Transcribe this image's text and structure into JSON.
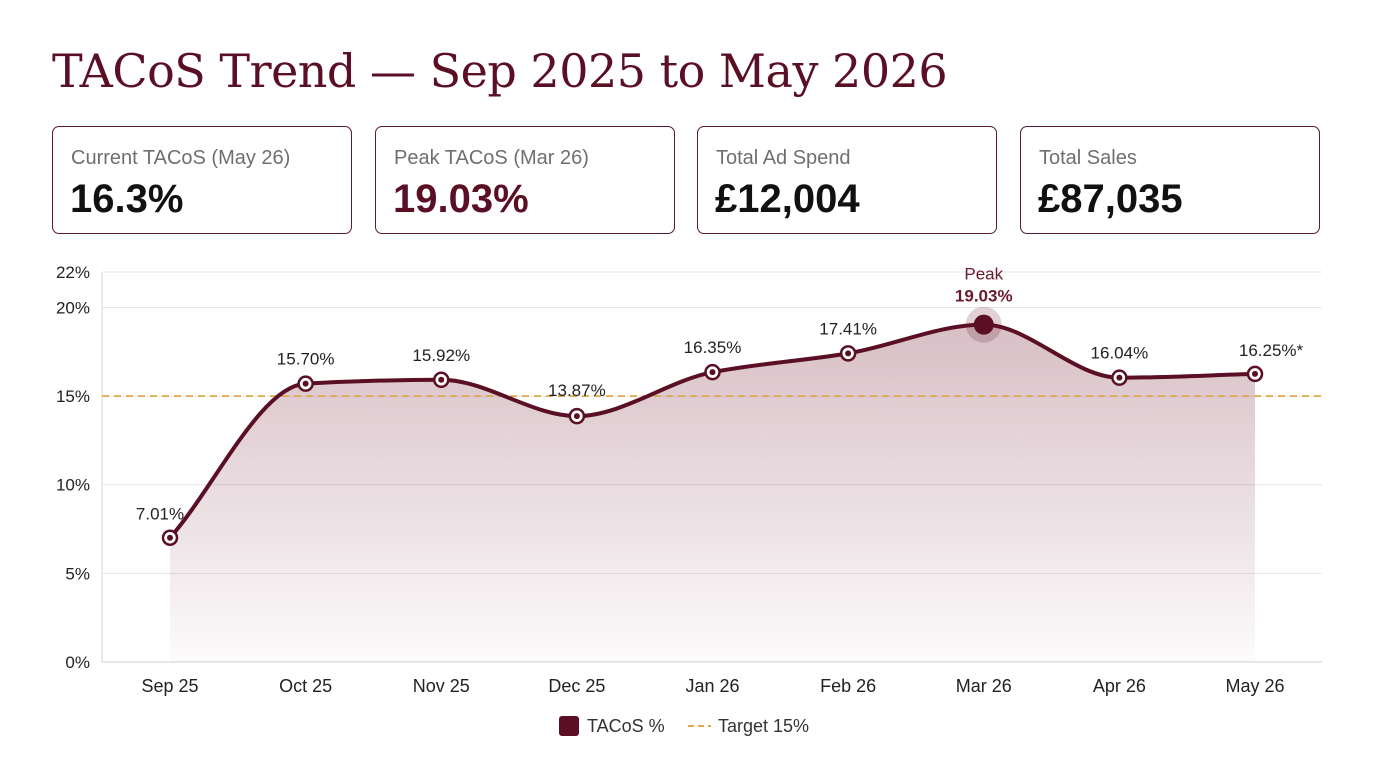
{
  "page": {
    "title": "TACoS Trend — Sep 2025 to May 2026"
  },
  "kpis": [
    {
      "label": "Current TACoS (May 26)",
      "value": "16.3%",
      "accent": false
    },
    {
      "label": "Peak TACoS (Mar 26)",
      "value": "19.03%",
      "accent": true
    },
    {
      "label": "Total Ad Spend",
      "value": "£12,004",
      "accent": false
    },
    {
      "label": "Total Sales",
      "value": "£87,035",
      "accent": false
    }
  ],
  "chart_data": {
    "type": "area",
    "title": "",
    "xlabel": "",
    "ylabel": "",
    "categories": [
      "Sep 25",
      "Oct 25",
      "Nov 25",
      "Dec 25",
      "Jan 26",
      "Feb 26",
      "Mar 26",
      "Apr 26",
      "May 26"
    ],
    "series": [
      {
        "name": "TACoS %",
        "values": [
          7.01,
          15.7,
          15.92,
          13.87,
          16.35,
          17.41,
          19.03,
          16.04,
          16.25
        ],
        "labels": [
          "7.01%",
          "15.70%",
          "15.92%",
          "13.87%",
          "16.35%",
          "17.41%",
          "19.03%",
          "16.04%",
          "16.25%*"
        ],
        "color": "#5a0f24"
      }
    ],
    "target": {
      "name": "Target 15%",
      "value": 15,
      "color": "#e0a84a"
    },
    "peak": {
      "index": 6,
      "title": "Peak",
      "label": "19.03%"
    },
    "y_ticks": [
      0,
      5,
      10,
      15,
      20,
      22
    ],
    "y_tick_labels": [
      "0%",
      "5%",
      "10%",
      "15%",
      "20%",
      "22%"
    ],
    "ylim": [
      0,
      22
    ],
    "grid": true,
    "legend": {
      "placement": "bottom-center",
      "items": [
        "TACoS %",
        "Target 15%"
      ]
    }
  }
}
